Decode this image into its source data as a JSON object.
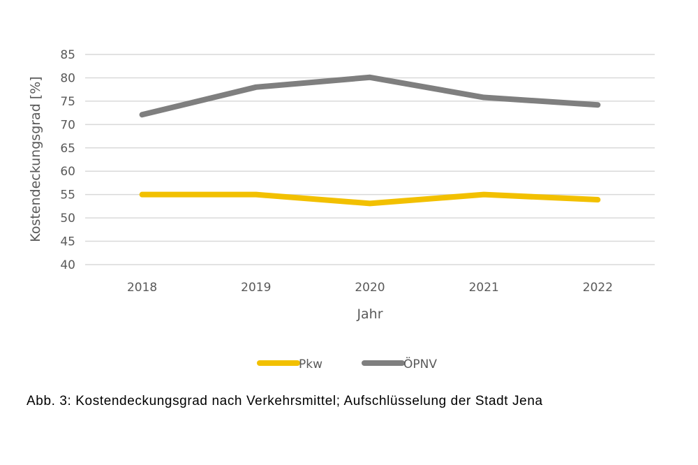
{
  "chart_data": {
    "type": "line",
    "title": "",
    "xlabel": "Jahr",
    "ylabel": "Kostendeckungsgrad [%]",
    "categories": [
      "2018",
      "2019",
      "2020",
      "2021",
      "2022"
    ],
    "ylim": [
      40,
      85
    ],
    "yticks": [
      40,
      45,
      50,
      55,
      60,
      65,
      70,
      75,
      80,
      85
    ],
    "grid": true,
    "legend_position": "bottom",
    "series": [
      {
        "name": "Pkw",
        "color": "#F2C000",
        "values": [
          55.0,
          55.0,
          53.1,
          55.0,
          53.9
        ]
      },
      {
        "name": "ÖPNV",
        "color": "#7F7F7F",
        "values": [
          72.1,
          78.0,
          80.1,
          75.8,
          74.2
        ]
      }
    ]
  },
  "caption": "Abb. 3: Kostendeckungsgrad nach Verkehrsmittel; Aufschlüsselung der Stadt Jena"
}
